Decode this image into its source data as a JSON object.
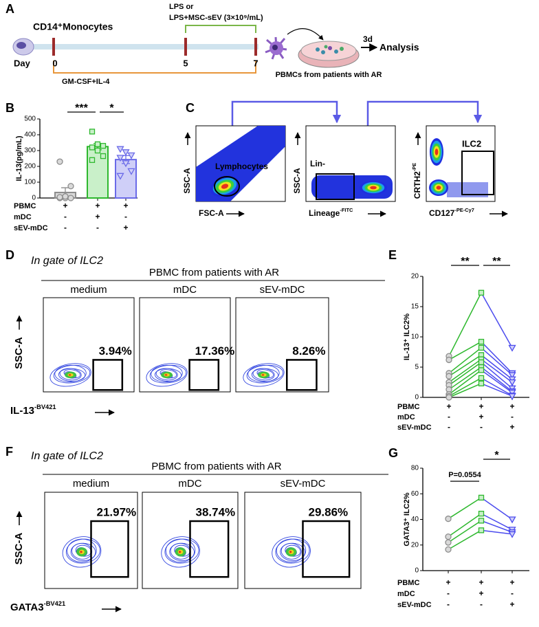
{
  "panel_labels": [
    "A",
    "B",
    "C",
    "D",
    "E",
    "F",
    "G"
  ],
  "schematic": {
    "start_label": "CD14⁺Monocytes",
    "day_label": "Day",
    "days": [
      "0",
      "5",
      "7"
    ],
    "treatment_top": [
      "LPS or",
      "LPS+MSC-sEV (3×10⁹/mL)"
    ],
    "treatment_bottom": "GM-CSF+IL-4",
    "culture_time": "3d",
    "endpoint": "Analysis",
    "dish_label": "PBMCs from patients with AR"
  },
  "gating": {
    "plots": [
      {
        "y_label": {
          "text": "SSC-A"
        },
        "x_label": {
          "text": "FSC-A"
        },
        "gate": "Lymphocytes"
      },
      {
        "y_label": {
          "text": "SSC-A"
        },
        "x_label": {
          "text": "Lineage",
          "sup": "-FITC"
        },
        "gate": "Lin-"
      },
      {
        "y_label": {
          "text": "CRTH2",
          "sup": "-PE"
        },
        "x_label": {
          "text": "CD127",
          "sup": "-PE-Cy7"
        },
        "gate": "ILC2"
      }
    ]
  },
  "flow_panels": [
    {
      "gate_title": "In gate of ILC2",
      "group_title": "PBMC from patients with AR",
      "columns": [
        "medium",
        "mDC",
        "sEV-mDC"
      ],
      "percentages": [
        "3.94%",
        "17.36%",
        "8.26%"
      ],
      "y_label": "SSC-A",
      "x_label": {
        "text": "IL-13",
        "sup": "-BV421"
      }
    },
    {
      "gate_title": "In gate of ILC2",
      "group_title": "PBMC from patients with AR",
      "columns": [
        "medium",
        "mDC",
        "sEV-mDC"
      ],
      "percentages": [
        "21.97%",
        "38.74%",
        "29.86%"
      ],
      "y_label": "SSC-A",
      "x_label": {
        "text": "GATA3",
        "sup": "-BV421"
      }
    }
  ],
  "chart_data": [
    {
      "type": "bar",
      "y_label": "IL-13(pg/mL)",
      "categories": [
        null,
        null,
        null
      ],
      "values": [
        35,
        325,
        243
      ],
      "errors": [
        30,
        20,
        25
      ],
      "colors": [
        "#8c8c8c",
        "#2db82d",
        "#6a6ae8"
      ],
      "points": [
        [
          0,
          0,
          0,
          5,
          10,
          75,
          230
        ],
        [
          420,
          340,
          330,
          320,
          300,
          265,
          240
        ],
        [
          310,
          290,
          270,
          255,
          220,
          170,
          140
        ]
      ],
      "ylim": [
        0,
        500
      ],
      "yticks": [
        0,
        100,
        200,
        300,
        400,
        500
      ],
      "significance": [
        {
          "label": "***",
          "from": 0,
          "to": 1
        },
        {
          "label": "*",
          "from": 1,
          "to": 2
        }
      ],
      "conditions": [
        {
          "name": "PBMC",
          "signs": [
            "+",
            "+",
            "+"
          ]
        },
        {
          "name": "mDC",
          "signs": [
            "-",
            "+",
            "-"
          ]
        },
        {
          "name": "sEV-mDC",
          "signs": [
            "-",
            "-",
            "+"
          ]
        }
      ]
    },
    {
      "type": "paired",
      "y_label": "IL-13⁺ ILC2%",
      "categories": [
        null,
        null,
        null
      ],
      "colors": [
        "#8c8c8c",
        "#2db82d",
        "#4b4bee"
      ],
      "series": [
        {
          "values": [
            6.8,
            17.3,
            8.2
          ]
        },
        {
          "values": [
            6.2,
            9.2,
            4
          ]
        },
        {
          "values": [
            4,
            8.2,
            3.7
          ]
        },
        {
          "values": [
            3.5,
            7,
            3
          ]
        },
        {
          "values": [
            2.5,
            6.3,
            2.5
          ]
        },
        {
          "values": [
            2,
            5.8,
            1.5
          ]
        },
        {
          "values": [
            1.3,
            5,
            1
          ]
        },
        {
          "values": [
            0.5,
            4.5,
            0.8
          ]
        },
        {
          "values": [
            0.2,
            3.2,
            0.3
          ]
        },
        {
          "values": [
            0,
            2.3,
            0.2
          ]
        }
      ],
      "ylim": [
        0,
        20
      ],
      "yticks": [
        0,
        5,
        10,
        15,
        20
      ],
      "significance": [
        {
          "label": "**",
          "from": 0,
          "to": 1
        },
        {
          "label": "**",
          "from": 1,
          "to": 2
        }
      ],
      "conditions": [
        {
          "name": "PBMC",
          "signs": [
            "+",
            "+",
            "+"
          ]
        },
        {
          "name": "mDC",
          "signs": [
            "-",
            "+",
            "-"
          ]
        },
        {
          "name": "sEV-mDC",
          "signs": [
            "-",
            "-",
            "+"
          ]
        }
      ]
    },
    {
      "type": "paired",
      "y_label": "GATA3⁺ ILC2%",
      "categories": [
        null,
        null,
        null
      ],
      "colors": [
        "#8c8c8c",
        "#2db82d",
        "#4b4bee"
      ],
      "series": [
        {
          "values": [
            40.5,
            57,
            40
          ]
        },
        {
          "values": [
            26.5,
            44.5,
            32
          ]
        },
        {
          "values": [
            22,
            39,
            30
          ]
        },
        {
          "values": [
            16.5,
            31.5,
            28.5
          ]
        }
      ],
      "ylim": [
        0,
        80
      ],
      "yticks": [
        0,
        20,
        40,
        60,
        80
      ],
      "significance": [
        {
          "label": "P=0.0554",
          "from": 0,
          "to": 1
        },
        {
          "label": "*",
          "from": 1,
          "to": 2
        }
      ],
      "conditions": [
        {
          "name": "PBMC",
          "signs": [
            "+",
            "+",
            "+"
          ]
        },
        {
          "name": "mDC",
          "signs": [
            "-",
            "+",
            "-"
          ]
        },
        {
          "name": "sEV-mDC",
          "signs": [
            "-",
            "-",
            "+"
          ]
        }
      ]
    }
  ]
}
